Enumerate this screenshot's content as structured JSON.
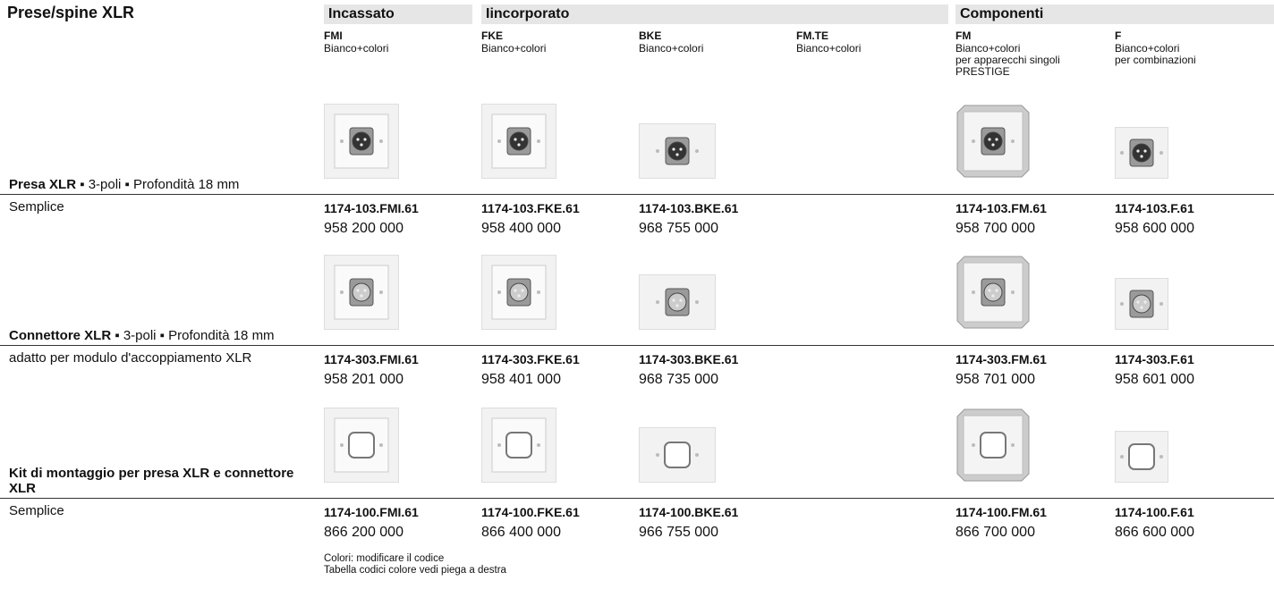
{
  "title": "Prese/spine XLR",
  "groups": [
    "Incassato",
    "Iincorporato",
    "Componenti"
  ],
  "columns": [
    {
      "code": "FMI",
      "desc": [
        "Bianco+colori"
      ]
    },
    {
      "code": "FKE",
      "desc": [
        "Bianco+colori"
      ]
    },
    {
      "code": "BKE",
      "desc": [
        "Bianco+colori"
      ]
    },
    {
      "code": "FM.TE",
      "desc": [
        "Bianco+colori"
      ]
    },
    {
      "code": "FM",
      "desc": [
        "Bianco+colori",
        "per apparecchi singoli",
        "PRESTIGE"
      ]
    },
    {
      "code": "F",
      "desc": [
        "Bianco+colori",
        "per combinazioni"
      ]
    }
  ],
  "sections": [
    {
      "heading_bold": "Presa XLR",
      "heading_rest": "▪ 3-poli ▪ Profondità 18 mm",
      "row_label": "Semplice",
      "items": [
        {
          "article": "1174-103.FMI.61",
          "number": "958 200 000"
        },
        {
          "article": "1174-103.FKE.61",
          "number": "958 400 000"
        },
        {
          "article": "1174-103.BKE.61",
          "number": "968 755 000"
        },
        {
          "article": "1174-103.FM.61",
          "number": "958 700 000"
        },
        {
          "article": "1174-103.F.61",
          "number": "958 600 000"
        }
      ]
    },
    {
      "heading_bold": "Connettore XLR",
      "heading_rest": "▪ 3-poli ▪ Profondità 18 mm",
      "row_label": "adatto per modulo d'accoppiamento XLR",
      "items": [
        {
          "article": "1174-303.FMI.61",
          "number": "958 201 000"
        },
        {
          "article": "1174-303.FKE.61",
          "number": "958 401 000"
        },
        {
          "article": "1174-303.BKE.61",
          "number": "968 735 000"
        },
        {
          "article": "1174-303.FM.61",
          "number": "958 701 000"
        },
        {
          "article": "1174-303.F.61",
          "number": "958 601 000"
        }
      ]
    },
    {
      "heading_bold": "Kit di montaggio per presa XLR e connettore XLR",
      "row_label": "Semplice",
      "items": [
        {
          "article": "1174-100.FMI.61",
          "number": "866 200 000"
        },
        {
          "article": "1174-100.FKE.61",
          "number": "866 400 000"
        },
        {
          "article": "1174-100.BKE.61",
          "number": "966 755 000"
        },
        {
          "article": "1174-100.FM.61",
          "number": "866 700 000"
        },
        {
          "article": "1174-100.F.61",
          "number": "866 600 000"
        }
      ]
    }
  ],
  "notes": [
    "Colori: modificare il codice",
    "Tabella codici colore vedi piega a destra"
  ]
}
